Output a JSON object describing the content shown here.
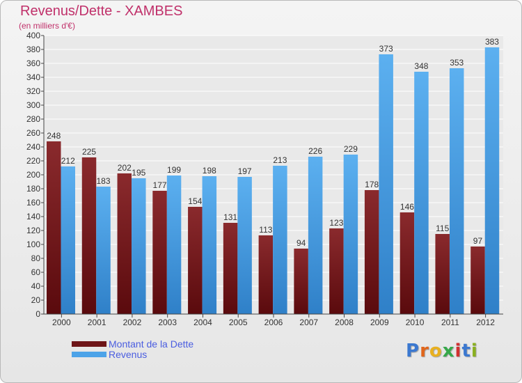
{
  "title": "Revenus/Dette - XAMBES",
  "subtitle": "(en milliers d'€)",
  "logo": {
    "letters": [
      "P",
      "r",
      "o",
      "x",
      "i",
      "t",
      "i"
    ],
    "colors": [
      "#3b78d0",
      "#e0661c",
      "#e8b020",
      "#36a84a",
      "#d03030",
      "#3b78d0",
      "#8ab020"
    ]
  },
  "colors": {
    "dette": "#6e1518",
    "revenus": "#4da3e8",
    "title": "#c0306a",
    "legend_text": "#4a5de0"
  },
  "chart_data": {
    "type": "bar",
    "title": "Revenus/Dette - XAMBES",
    "subtitle": "(en milliers d'€)",
    "categories": [
      "2000",
      "2001",
      "2002",
      "2003",
      "2004",
      "2005",
      "2006",
      "2007",
      "2008",
      "2009",
      "2010",
      "2011",
      "2012"
    ],
    "series": [
      {
        "name": "Montant de la Dette",
        "values": [
          248,
          225,
          202,
          177,
          154,
          131,
          113,
          94,
          123,
          178,
          146,
          115,
          97
        ]
      },
      {
        "name": "Revenus",
        "values": [
          212,
          183,
          195,
          199,
          198,
          197,
          213,
          226,
          229,
          373,
          348,
          353,
          383
        ]
      }
    ],
    "ylim": [
      0,
      400
    ],
    "ytick_step": 20,
    "grid": true,
    "legend_position": "bottom-left"
  }
}
